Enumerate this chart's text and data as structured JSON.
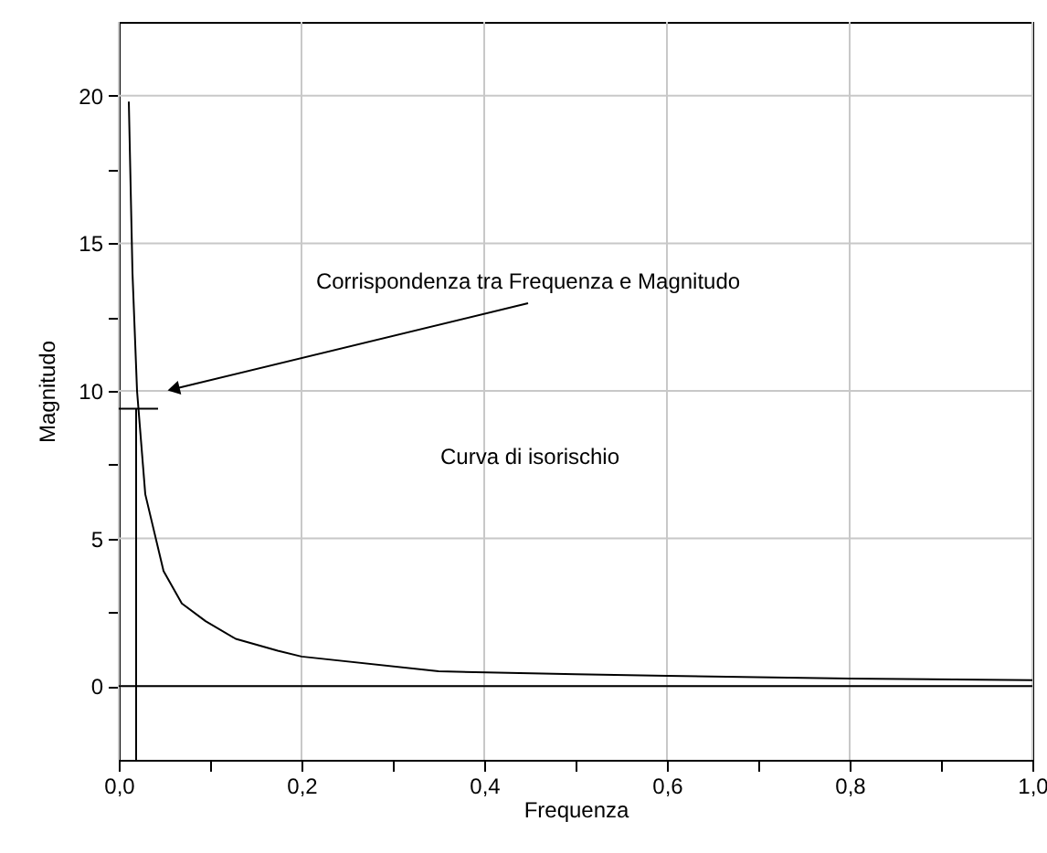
{
  "chart_data": {
    "type": "line",
    "xlabel": "Frequenza",
    "ylabel": "Magnitudo",
    "x": [
      0.011,
      0.015,
      0.02,
      0.029,
      0.049,
      0.069,
      0.095,
      0.128,
      0.174,
      0.2,
      0.35,
      0.5,
      0.6,
      0.8,
      1.0
    ],
    "series": [
      {
        "color": "#000000",
        "values": [
          19.8,
          14,
          10,
          6.5,
          3.9,
          2.8,
          2.2,
          1.6,
          1.2,
          1.0,
          0.5,
          0.4,
          0.35,
          0.25,
          0.2
        ]
      },
      {
        "color": "#000000",
        "x": [
          0.019,
          0.019
        ],
        "values": [
          -2.5,
          9.4
        ]
      },
      {
        "color": "#000000",
        "x": [
          0,
          0.043
        ],
        "values": [
          9.4,
          9.4
        ]
      }
    ],
    "xlim": [
      0,
      1
    ],
    "ylim": [
      -2.5,
      22.5
    ],
    "xticks": [
      {
        "value": 0,
        "label": "0,0"
      },
      {
        "value": 0.1,
        "label": null
      },
      {
        "value": 0.2,
        "label": "0,2"
      },
      {
        "value": 0.3,
        "label": null
      },
      {
        "value": 0.4,
        "label": "0,4"
      },
      {
        "value": 0.5,
        "label": null
      },
      {
        "value": 0.6,
        "label": "0,6"
      },
      {
        "value": 0.7,
        "label": null
      },
      {
        "value": 0.8,
        "label": "0,8"
      },
      {
        "value": 0.9,
        "label": null
      },
      {
        "value": 1,
        "label": "1,0"
      }
    ],
    "yticks": [
      0,
      {
        "value": 2.5,
        "label": null
      },
      5,
      {
        "value": 7.5,
        "label": null
      },
      10,
      {
        "value": 12.5,
        "label": null
      },
      15,
      {
        "value": 17.5,
        "label": null
      },
      20
    ],
    "grid": true,
    "marker": "none",
    "line_style": "solid",
    "ref_lines": [
      {
        "axis": "y",
        "value": 0
      }
    ],
    "annotations": [
      "Corrispondenza tra Frequenza e Magnitudo",
      "Curva di isorischio"
    ]
  }
}
